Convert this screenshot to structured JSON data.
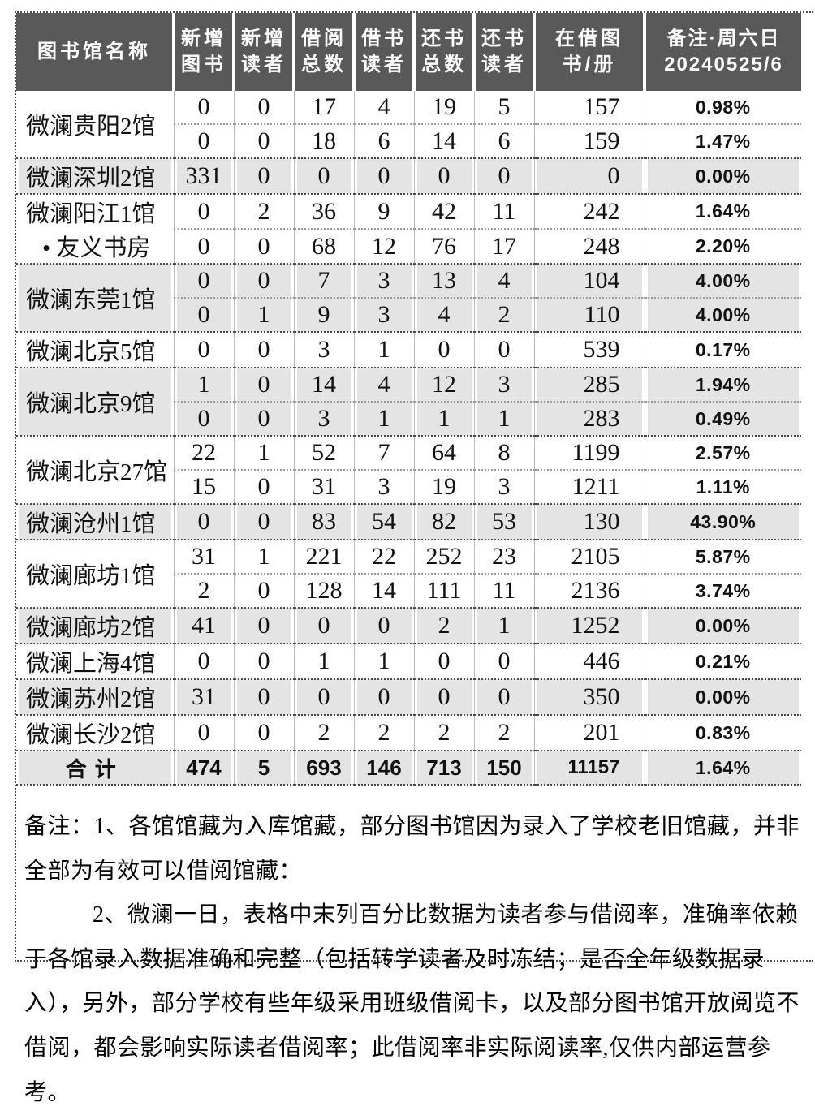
{
  "colors": {
    "header_bg": "#595959",
    "header_text": "#ffffff",
    "row_shade": "#e4e4e4",
    "border_dots_dark": "#4a4a4a",
    "border_dots_light": "#9a9a9a"
  },
  "table": {
    "headers": [
      {
        "line1": "图书馆名称",
        "line2": ""
      },
      {
        "line1": "新增",
        "line2": "图书"
      },
      {
        "line1": "新增",
        "line2": "读者"
      },
      {
        "line1": "借阅",
        "line2": "总数"
      },
      {
        "line1": "借书",
        "line2": "读者"
      },
      {
        "line1": "还书",
        "line2": "总数"
      },
      {
        "line1": "还书",
        "line2": "读者"
      },
      {
        "line1": "在借图",
        "line2": "书/册"
      },
      {
        "line1": "备注·周六日",
        "line2": "20240525/6"
      }
    ],
    "groups": [
      {
        "name": "微澜贵阳2馆",
        "shaded": false,
        "rows": [
          [
            "0",
            "0",
            "17",
            "4",
            "19",
            "5",
            "157",
            "0.98%"
          ],
          [
            "0",
            "0",
            "18",
            "6",
            "14",
            "6",
            "159",
            "1.47%"
          ]
        ]
      },
      {
        "name": "微澜深圳2馆",
        "shaded": true,
        "rows": [
          [
            "331",
            "0",
            "0",
            "0",
            "0",
            "0",
            "0",
            "0.00%"
          ]
        ]
      },
      {
        "name": "微澜阳江1馆",
        "name2": "• 友义书房",
        "shaded": false,
        "rows": [
          [
            "0",
            "2",
            "36",
            "9",
            "42",
            "11",
            "242",
            "1.64%"
          ],
          [
            "0",
            "0",
            "68",
            "12",
            "76",
            "17",
            "248",
            "2.20%"
          ]
        ]
      },
      {
        "name": "微澜东莞1馆",
        "shaded": true,
        "rows": [
          [
            "0",
            "0",
            "7",
            "3",
            "13",
            "4",
            "104",
            "4.00%"
          ],
          [
            "0",
            "1",
            "9",
            "3",
            "4",
            "2",
            "110",
            "4.00%"
          ]
        ]
      },
      {
        "name": "微澜北京5馆",
        "shaded": false,
        "rows": [
          [
            "0",
            "0",
            "3",
            "1",
            "0",
            "0",
            "539",
            "0.17%"
          ]
        ]
      },
      {
        "name": "微澜北京9馆",
        "shaded": true,
        "rows": [
          [
            "1",
            "0",
            "14",
            "4",
            "12",
            "3",
            "285",
            "1.94%"
          ],
          [
            "0",
            "0",
            "3",
            "1",
            "1",
            "1",
            "283",
            "0.49%"
          ]
        ]
      },
      {
        "name": "微澜北京27馆",
        "shaded": false,
        "rows": [
          [
            "22",
            "1",
            "52",
            "7",
            "64",
            "8",
            "1199",
            "2.57%"
          ],
          [
            "15",
            "0",
            "31",
            "3",
            "19",
            "3",
            "1211",
            "1.11%"
          ]
        ]
      },
      {
        "name": "微澜沧州1馆",
        "shaded": true,
        "rows": [
          [
            "0",
            "0",
            "83",
            "54",
            "82",
            "53",
            "130",
            "43.90%"
          ]
        ]
      },
      {
        "name": "微澜廊坊1馆",
        "shaded": false,
        "rows": [
          [
            "31",
            "1",
            "221",
            "22",
            "252",
            "23",
            "2105",
            "5.87%"
          ],
          [
            "2",
            "0",
            "128",
            "14",
            "111",
            "11",
            "2136",
            "3.74%"
          ]
        ]
      },
      {
        "name": "微澜廊坊2馆",
        "shaded": true,
        "rows": [
          [
            "41",
            "0",
            "0",
            "0",
            "2",
            "1",
            "1252",
            "0.00%"
          ]
        ]
      },
      {
        "name": "微澜上海4馆",
        "shaded": false,
        "rows": [
          [
            "0",
            "0",
            "1",
            "1",
            "0",
            "0",
            "446",
            "0.21%"
          ]
        ]
      },
      {
        "name": "微澜苏州2馆",
        "shaded": true,
        "rows": [
          [
            "31",
            "0",
            "0",
            "0",
            "0",
            "0",
            "350",
            "0.00%"
          ]
        ]
      },
      {
        "name": "微澜长沙2馆",
        "shaded": false,
        "rows": [
          [
            "0",
            "0",
            "2",
            "2",
            "2",
            "2",
            "201",
            "0.83%"
          ]
        ]
      }
    ],
    "total": {
      "label": "合计",
      "values": [
        "474",
        "5",
        "693",
        "146",
        "713",
        "150",
        "11157",
        "1.64%"
      ],
      "shaded": true
    }
  },
  "notes": {
    "p1": "备注：1、各馆馆藏为入库馆藏，部分图书馆因为录入了学校老旧馆藏，并非全部为有效可以借阅馆藏：",
    "p2": "2、微澜一日，表格中末列百分比数据为读者参与借阅率，准确率依赖于各馆录入数据准确和完整（包括转学读者及时冻结；是否全年级数据录入），另外，部分学校有些年级采用班级借阅卡，以及部分图书馆开放阅览不借阅，都会影响实际读者借阅率；此借阅率非实际阅读率,仅供内部运营参考。"
  }
}
